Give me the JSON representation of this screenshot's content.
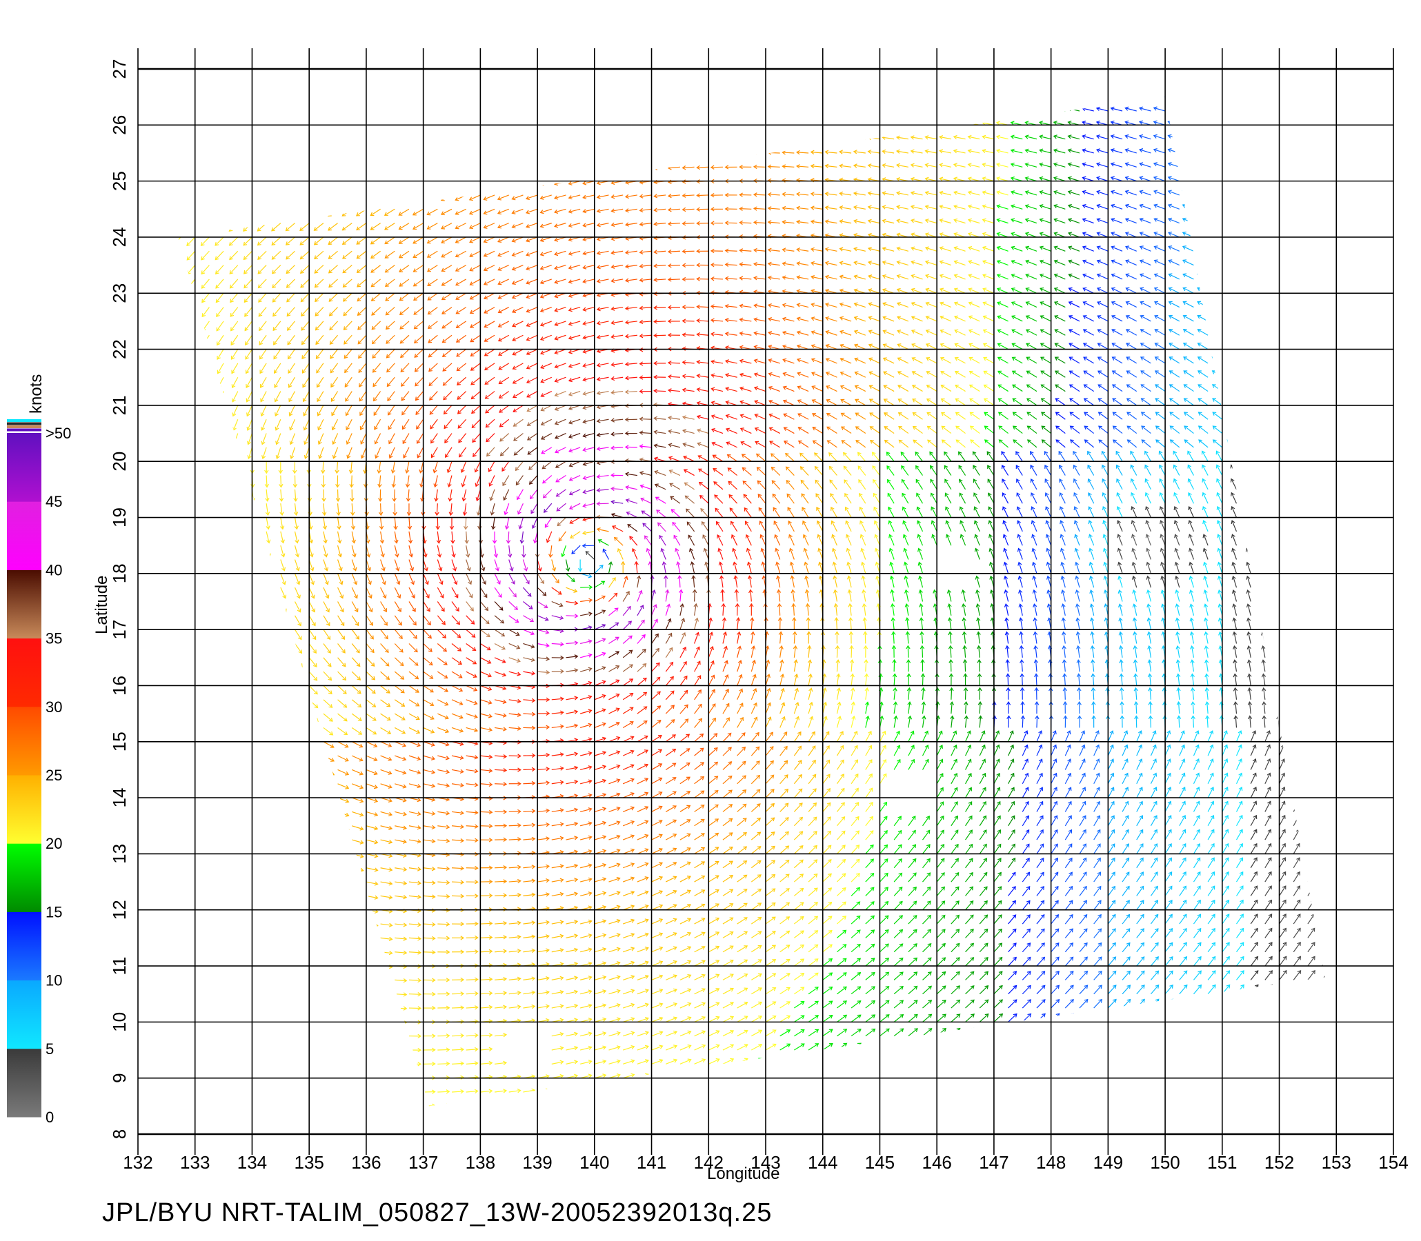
{
  "map": {
    "x_axis": {
      "title": "Longitude",
      "min": 132,
      "max": 154,
      "ticks": [
        132,
        133,
        134,
        135,
        136,
        137,
        138,
        139,
        140,
        141,
        142,
        143,
        144,
        145,
        146,
        147,
        148,
        149,
        150,
        151,
        152,
        153,
        154
      ]
    },
    "y_axis": {
      "title": "Latitude",
      "min": 8,
      "max": 27,
      "ticks": [
        8,
        9,
        10,
        11,
        12,
        13,
        14,
        15,
        16,
        17,
        18,
        19,
        20,
        21,
        22,
        23,
        24,
        25,
        26,
        27
      ]
    },
    "grid": true,
    "swath_corners_lonlat": [
      [
        132.7,
        24.0
      ],
      [
        150.0,
        26.5
      ],
      [
        152.8,
        10.8
      ],
      [
        137.1,
        8.5
      ]
    ],
    "storm_center_lonlat": [
      139.9,
      18.2
    ],
    "data_gaps_lonlat": [
      [
        146.3,
        18.0
      ],
      [
        145.4,
        14.0
      ],
      [
        138.7,
        9.5
      ]
    ]
  },
  "colorbar": {
    "unit_label": "knots",
    "tick_labels": [
      "0",
      "5",
      "10",
      "15",
      "20",
      "25",
      "30",
      "35",
      "40",
      "45",
      ">50"
    ],
    "bands": [
      {
        "from": 0,
        "to": 5,
        "colors": [
          "#7a7a7a",
          "#3a3a3a"
        ]
      },
      {
        "from": 5,
        "to": 10,
        "colors": [
          "#10e8ff",
          "#0aa8ff"
        ]
      },
      {
        "from": 10,
        "to": 15,
        "colors": [
          "#1a7aff",
          "#0010ff"
        ]
      },
      {
        "from": 15,
        "to": 20,
        "colors": [
          "#008a00",
          "#00ff00"
        ]
      },
      {
        "from": 20,
        "to": 25,
        "colors": [
          "#ffff30",
          "#ffb000"
        ]
      },
      {
        "from": 25,
        "to": 30,
        "colors": [
          "#ff9a00",
          "#ff4a00"
        ]
      },
      {
        "from": 30,
        "to": 35,
        "colors": [
          "#ff2a00",
          "#ff1010"
        ]
      },
      {
        "from": 35,
        "to": 40,
        "colors": [
          "#c88a5a",
          "#4a0c00"
        ]
      },
      {
        "from": 40,
        "to": 45,
        "colors": [
          "#ff00ff",
          "#e020e0"
        ]
      },
      {
        "from": 45,
        "to": 50,
        "colors": [
          "#b010d0",
          "#6010c0"
        ]
      }
    ],
    "top_stripes": [
      "#10e8ff",
      "#2a2a2a",
      "#c88a5a",
      "#6010c0"
    ]
  },
  "footer": {
    "text": "JPL/BYU  NRT-TALIM_050827_13W-20052392013q.25"
  }
}
